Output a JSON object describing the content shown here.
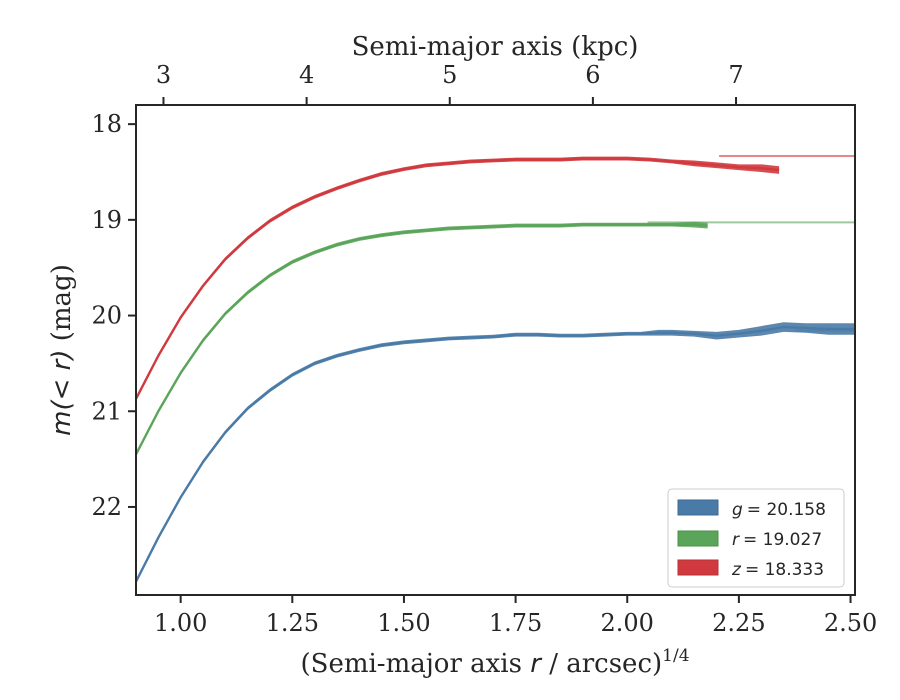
{
  "chart_data": {
    "type": "line",
    "title": "",
    "xlabel": "(Semi-major axis r / arcsec)1/4",
    "xlabel_parts": {
      "pre": "(Semi-major axis ",
      "var": "r",
      "post": " / arcsec)",
      "sup": "1/4"
    },
    "ylabel": "m(< r) (mag)",
    "ylabel_parts": {
      "var": "m(< r)",
      "post": " (mag)"
    },
    "top_xlabel": "Semi-major axis (kpc)",
    "xlim": [
      0.9,
      2.51
    ],
    "ylim": [
      22.92,
      17.8
    ],
    "y_inverted": true,
    "x_ticks": [
      1.0,
      1.25,
      1.5,
      1.75,
      2.0,
      2.25,
      2.5
    ],
    "x_tick_labels": [
      "1.00",
      "1.25",
      "1.50",
      "1.75",
      "2.00",
      "2.25",
      "2.50"
    ],
    "y_ticks": [
      18,
      19,
      20,
      21,
      22
    ],
    "y_tick_labels": [
      "18",
      "19",
      "20",
      "21",
      "22"
    ],
    "top_x_ticks": [
      3,
      4,
      5,
      6,
      7
    ],
    "top_x_tick_labels": [
      "3",
      "4",
      "5",
      "6",
      "7"
    ],
    "top_axis_scale": 3.12,
    "legend_position": "lower right",
    "series": [
      {
        "name": "g = 20.158",
        "legend_var": "g",
        "legend_value": "= 20.158",
        "color": "#4a7ba7",
        "asymptote": 20.158,
        "x": [
          0.9,
          0.95,
          1.0,
          1.05,
          1.1,
          1.15,
          1.2,
          1.25,
          1.3,
          1.35,
          1.4,
          1.45,
          1.5,
          1.55,
          1.6,
          1.65,
          1.7,
          1.75,
          1.8,
          1.85,
          1.9,
          1.95,
          2.0,
          2.03,
          2.07,
          2.1,
          2.15,
          2.2,
          2.25,
          2.3,
          2.35,
          2.4,
          2.45,
          2.51
        ],
        "y": [
          22.78,
          22.32,
          21.9,
          21.53,
          21.22,
          20.97,
          20.78,
          20.62,
          20.5,
          20.42,
          20.36,
          20.31,
          20.28,
          20.26,
          20.24,
          20.23,
          20.22,
          20.2,
          20.2,
          20.21,
          20.21,
          20.2,
          20.19,
          20.19,
          20.18,
          20.18,
          20.19,
          20.21,
          20.19,
          20.16,
          20.12,
          20.13,
          20.14,
          20.14
        ],
        "band": [
          0.02,
          0.02,
          0.02,
          0.02,
          0.02,
          0.02,
          0.02,
          0.02,
          0.02,
          0.02,
          0.02,
          0.02,
          0.02,
          0.02,
          0.02,
          0.02,
          0.02,
          0.02,
          0.02,
          0.02,
          0.02,
          0.02,
          0.02,
          0.02,
          0.03,
          0.03,
          0.03,
          0.04,
          0.04,
          0.05,
          0.05,
          0.05,
          0.06,
          0.06
        ]
      },
      {
        "name": "r = 19.027",
        "legend_var": "r",
        "legend_value": "= 19.027",
        "color": "#5ba55a",
        "asymptote": 19.027,
        "x": [
          0.9,
          0.95,
          1.0,
          1.05,
          1.1,
          1.15,
          1.2,
          1.25,
          1.3,
          1.35,
          1.4,
          1.45,
          1.5,
          1.55,
          1.6,
          1.65,
          1.7,
          1.75,
          1.8,
          1.85,
          1.9,
          1.95,
          2.0,
          2.05,
          2.1,
          2.15,
          2.18
        ],
        "y": [
          21.45,
          21.0,
          20.6,
          20.26,
          19.98,
          19.76,
          19.58,
          19.44,
          19.34,
          19.26,
          19.2,
          19.16,
          19.13,
          19.11,
          19.09,
          19.08,
          19.07,
          19.06,
          19.06,
          19.06,
          19.05,
          19.05,
          19.05,
          19.05,
          19.05,
          19.05,
          19.06
        ],
        "band": [
          0.02,
          0.02,
          0.02,
          0.02,
          0.02,
          0.02,
          0.02,
          0.02,
          0.02,
          0.02,
          0.02,
          0.02,
          0.02,
          0.02,
          0.02,
          0.02,
          0.02,
          0.02,
          0.02,
          0.02,
          0.02,
          0.02,
          0.02,
          0.02,
          0.02,
          0.03,
          0.03
        ]
      },
      {
        "name": "z = 18.333",
        "legend_var": "z",
        "legend_value": "= 18.333",
        "color": "#d03a3e",
        "asymptote": 18.333,
        "x": [
          0.9,
          0.95,
          1.0,
          1.05,
          1.1,
          1.15,
          1.2,
          1.25,
          1.3,
          1.35,
          1.4,
          1.45,
          1.5,
          1.55,
          1.6,
          1.65,
          1.7,
          1.75,
          1.8,
          1.85,
          1.9,
          1.95,
          2.0,
          2.05,
          2.1,
          2.15,
          2.2,
          2.25,
          2.3,
          2.34
        ],
        "y": [
          20.87,
          20.42,
          20.02,
          19.69,
          19.41,
          19.19,
          19.01,
          18.87,
          18.76,
          18.67,
          18.59,
          18.52,
          18.47,
          18.43,
          18.41,
          18.39,
          18.38,
          18.37,
          18.37,
          18.37,
          18.36,
          18.36,
          18.36,
          18.37,
          18.39,
          18.41,
          18.43,
          18.45,
          18.46,
          18.48
        ],
        "band": [
          0.02,
          0.02,
          0.02,
          0.02,
          0.02,
          0.02,
          0.02,
          0.02,
          0.02,
          0.02,
          0.02,
          0.02,
          0.02,
          0.02,
          0.02,
          0.02,
          0.02,
          0.02,
          0.02,
          0.02,
          0.02,
          0.02,
          0.02,
          0.02,
          0.02,
          0.03,
          0.03,
          0.03,
          0.04,
          0.04
        ]
      }
    ]
  }
}
